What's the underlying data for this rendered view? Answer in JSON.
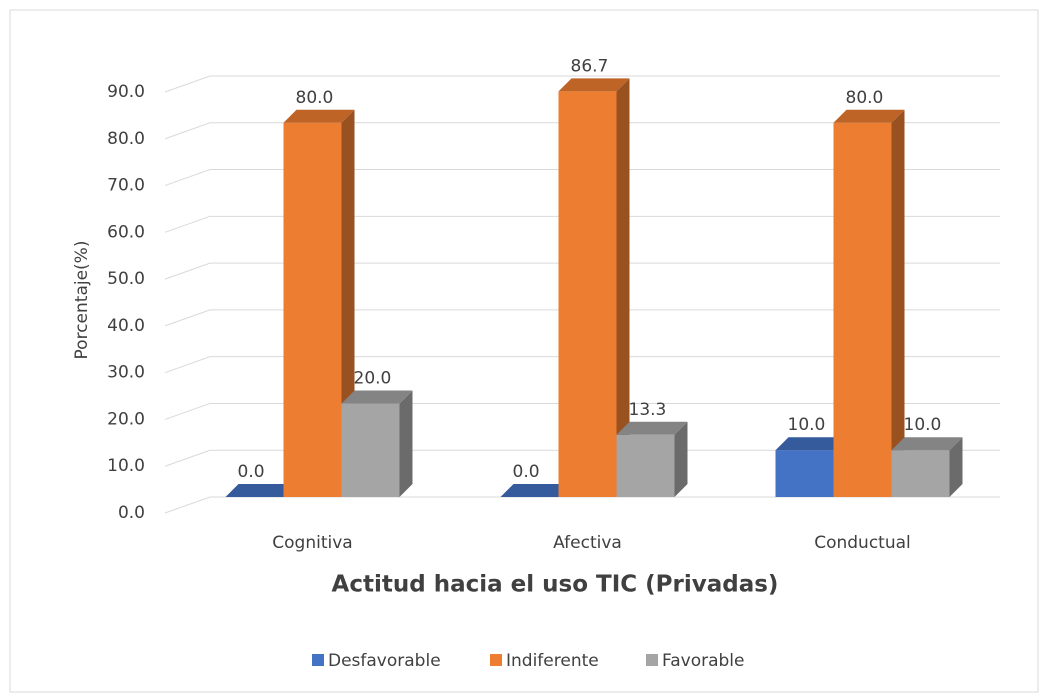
{
  "chart_data": {
    "type": "bar3d",
    "title": "Actitud hacia el uso TIC (Privadas)",
    "y_label": "Porcentaje(%)",
    "categories": [
      "Cognitiva",
      "Afectiva",
      "Conductual"
    ],
    "series": [
      {
        "name": "Desfavorable",
        "color": "#4472c4",
        "values": [
          0,
          0,
          10
        ],
        "value_labels": [
          "0.0",
          "0.0",
          "10.0"
        ]
      },
      {
        "name": "Indiferente",
        "color": "#ed7d31",
        "values": [
          80,
          86.7,
          80
        ],
        "value_labels": [
          "80.0",
          "86.7",
          "80.0"
        ]
      },
      {
        "name": "Favorable",
        "color": "#a5a5a5",
        "values": [
          20,
          13.3,
          10
        ],
        "value_labels": [
          "20.0",
          "13.3",
          "10.0"
        ]
      }
    ],
    "ylim": [
      0,
      90
    ],
    "yticks": [
      {
        "value": 0,
        "label": "0.0"
      },
      {
        "value": 10,
        "label": "10.0"
      },
      {
        "value": 20,
        "label": "20.0"
      },
      {
        "value": 30,
        "label": "30.0"
      },
      {
        "value": 40,
        "label": "40.0"
      },
      {
        "value": 50,
        "label": "50.0"
      },
      {
        "value": 60,
        "label": "60.0"
      },
      {
        "value": 70,
        "label": "70.0"
      },
      {
        "value": 80,
        "label": "80.0"
      },
      {
        "value": 90,
        "label": "90.0"
      }
    ],
    "grid": true,
    "legend": "bottom"
  }
}
